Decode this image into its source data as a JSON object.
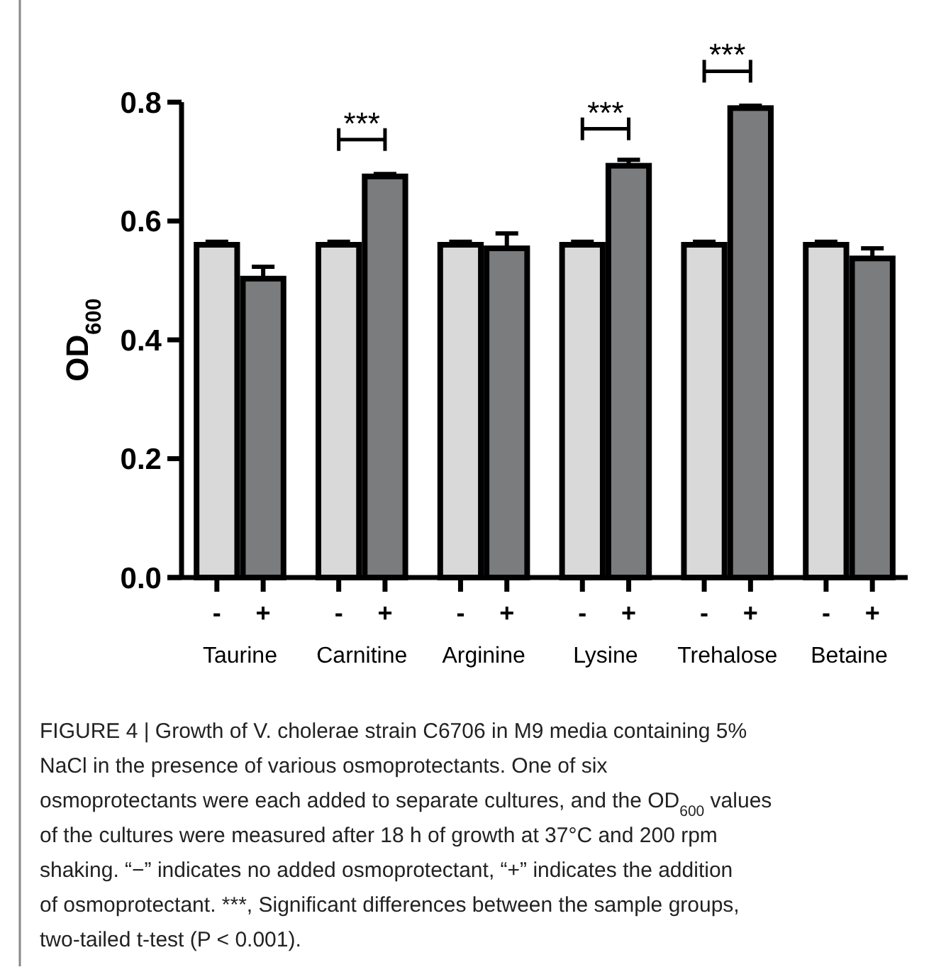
{
  "chart_data": {
    "type": "bar",
    "ylabel": "OD$_{600}$",
    "categories": [
      "Taurine",
      "Carnitine",
      "Arginine",
      "Lysine",
      "Trehalose",
      "Betaine"
    ],
    "series": [
      {
        "name": "-",
        "color": "#d9d9d9",
        "values": [
          0.56,
          0.56,
          0.56,
          0.56,
          0.56,
          0.56
        ],
        "errors": [
          0.005,
          0.005,
          0.005,
          0.005,
          0.005,
          0.005
        ]
      },
      {
        "name": "+",
        "color": "#7a7c7d",
        "values": [
          0.503,
          0.675,
          0.554,
          0.693,
          0.79,
          0.537
        ],
        "errors": [
          0.02,
          0.004,
          0.025,
          0.01,
          0.004,
          0.017
        ]
      }
    ],
    "ylim": [
      0,
      0.8
    ],
    "yticks": [
      {
        "value": 0,
        "label": "0.0"
      },
      {
        "value": 0.2,
        "label": "0.2"
      },
      {
        "value": 0.4,
        "label": "0.4"
      },
      {
        "value": 0.6,
        "label": "0.6"
      },
      {
        "value": 0.8,
        "label": "0.8"
      }
    ],
    "grid": false,
    "legend": "bottom",
    "annotations": [
      {
        "text": "***",
        "x": "Carnitine",
        "y": 0.675
      },
      {
        "text": "***",
        "x": "Lysine",
        "y": 0.693
      },
      {
        "text": "***",
        "x": "Trehalose",
        "y": 0.79
      },
      "FIGURE 4 | Growth of V. cholerae strain C6706 in M9 media containing 5% NaCl in the presence of various osmoprotectants. One of six osmoprotectants were each added to separate cultures, and the OD$_{600}$ values of the cultures were measured after 18 h of growth at 37°C and 200 rpm shaking. “−” indicates no added osmoprotectant, “+” indicates the addition of osmoprotectant. ***, Significant differences between the sample groups, two-tailed t-test (P < 0.001)."
    ]
  }
}
